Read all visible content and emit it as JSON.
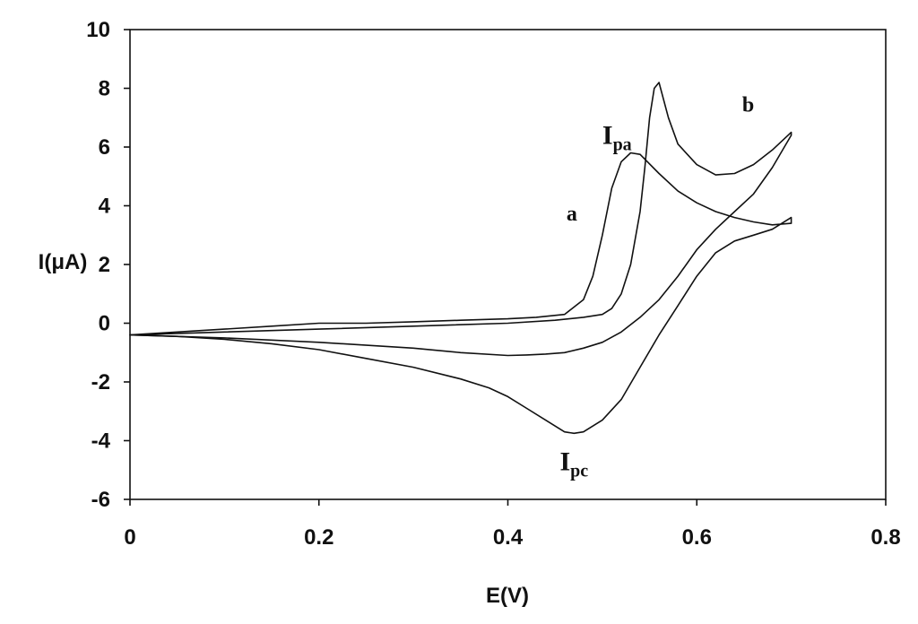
{
  "chart_data": {
    "type": "line",
    "title": "",
    "xlabel": "E(V)",
    "ylabel": "I(μA)",
    "xlim": [
      0,
      0.8
    ],
    "ylim": [
      -6,
      10
    ],
    "xticks": [
      "0",
      "0.2",
      "0.4",
      "0.6",
      "0.8"
    ],
    "yticks": [
      "10",
      "8",
      "6",
      "4",
      "2",
      "0",
      "-2",
      "-4",
      "-6"
    ],
    "grid": false,
    "legend": "none",
    "series": [
      {
        "name": "a",
        "color": "#111111",
        "x": [
          0.0,
          0.05,
          0.1,
          0.15,
          0.2,
          0.25,
          0.3,
          0.35,
          0.4,
          0.43,
          0.46,
          0.48,
          0.49,
          0.5,
          0.51,
          0.52,
          0.53,
          0.54,
          0.56,
          0.58,
          0.6,
          0.62,
          0.64,
          0.66,
          0.68,
          0.7,
          0.7,
          0.68,
          0.66,
          0.64,
          0.62,
          0.6,
          0.58,
          0.56,
          0.54,
          0.52,
          0.5,
          0.48,
          0.47,
          0.46,
          0.44,
          0.42,
          0.4,
          0.38,
          0.35,
          0.3,
          0.25,
          0.2,
          0.15,
          0.1,
          0.05,
          0.0
        ],
        "y": [
          -0.4,
          -0.3,
          -0.2,
          -0.1,
          0.0,
          0.0,
          0.05,
          0.1,
          0.15,
          0.2,
          0.3,
          0.8,
          1.6,
          3.0,
          4.6,
          5.5,
          5.8,
          5.75,
          5.1,
          4.5,
          4.1,
          3.8,
          3.6,
          3.45,
          3.35,
          3.4,
          3.6,
          3.2,
          3.0,
          2.8,
          2.4,
          1.6,
          0.6,
          -0.4,
          -1.5,
          -2.6,
          -3.3,
          -3.7,
          -3.75,
          -3.7,
          -3.3,
          -2.9,
          -2.5,
          -2.2,
          -1.9,
          -1.5,
          -1.2,
          -0.9,
          -0.7,
          -0.55,
          -0.45,
          -0.4
        ]
      },
      {
        "name": "b",
        "color": "#111111",
        "x": [
          0.0,
          0.1,
          0.2,
          0.3,
          0.4,
          0.45,
          0.48,
          0.5,
          0.51,
          0.52,
          0.53,
          0.54,
          0.545,
          0.55,
          0.555,
          0.56,
          0.57,
          0.58,
          0.6,
          0.62,
          0.64,
          0.66,
          0.68,
          0.7,
          0.7,
          0.68,
          0.66,
          0.64,
          0.62,
          0.6,
          0.58,
          0.56,
          0.54,
          0.52,
          0.5,
          0.48,
          0.46,
          0.44,
          0.42,
          0.4,
          0.35,
          0.3,
          0.2,
          0.1,
          0.0
        ],
        "y": [
          -0.4,
          -0.3,
          -0.2,
          -0.1,
          0.0,
          0.1,
          0.2,
          0.3,
          0.5,
          1.0,
          2.0,
          3.8,
          5.3,
          7.0,
          8.0,
          8.2,
          7.0,
          6.1,
          5.4,
          5.05,
          5.1,
          5.4,
          5.9,
          6.5,
          6.4,
          5.3,
          4.4,
          3.8,
          3.2,
          2.5,
          1.6,
          0.8,
          0.2,
          -0.3,
          -0.65,
          -0.85,
          -1.0,
          -1.05,
          -1.08,
          -1.1,
          -1.0,
          -0.85,
          -0.65,
          -0.5,
          -0.4
        ]
      }
    ],
    "annotations": [
      {
        "text": "a",
        "sub": "",
        "x": 0.462,
        "y": 3.5
      },
      {
        "text": "b",
        "sub": "",
        "x": 0.648,
        "y": 7.2
      },
      {
        "text": "I",
        "sub": "pa",
        "x": 0.5,
        "y": 6.1
      },
      {
        "text": "I",
        "sub": "pc",
        "x": 0.455,
        "y": -5.0
      }
    ]
  }
}
